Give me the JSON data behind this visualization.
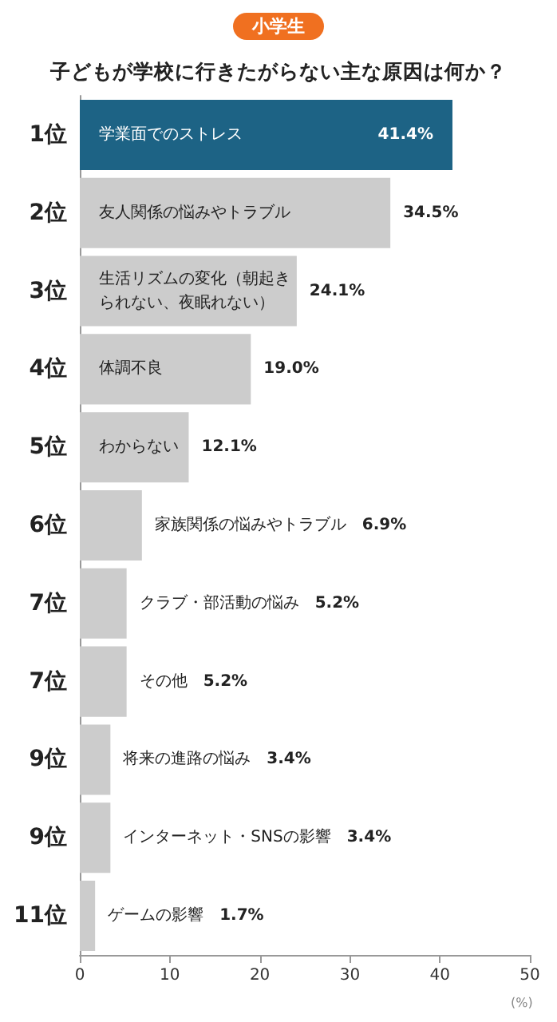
{
  "chart_data": {
    "type": "bar",
    "orientation": "horizontal",
    "subtitle": "小学生",
    "title": "子どもが学校に行きたがらない主な原因は何か？",
    "xlabel": "(%)",
    "categories": [
      "1位",
      "2位",
      "3位",
      "4位",
      "5位",
      "6位",
      "7位",
      "7位",
      "9位",
      "9位",
      "11位"
    ],
    "values": [
      41.4,
      34.5,
      24.1,
      19.0,
      12.1,
      6.9,
      5.2,
      5.2,
      3.4,
      3.4,
      1.7
    ],
    "colors": [
      "#1d6385",
      "#cccccc",
      "#cccccc",
      "#cccccc",
      "#cccccc",
      "#cccccc",
      "#cccccc",
      "#cccccc",
      "#cccccc",
      "#cccccc",
      "#cccccc"
    ],
    "value_labels": [
      "41.4%",
      "34.5%",
      "24.1%",
      "19.0%",
      "12.1%",
      "家族関係の悩みやトラブル　6.9%",
      "クラブ・部活動の悩み　5.2%",
      "その他　5.2%",
      "将来の進路の悩み　3.4%",
      "インターネット・SNSの影響　3.4%",
      "ゲームの影響　1.7%"
    ],
    "annotations": [
      "学業面でのストレス",
      "友人関係の悩みやトラブル",
      "生活リズムの変化（朝起きられない、夜眠れない）",
      "体調不良",
      "わからない"
    ],
    "xlim": [
      0,
      50
    ],
    "xticks": [
      0,
      10,
      20,
      30,
      40,
      50
    ],
    "grid": false
  }
}
